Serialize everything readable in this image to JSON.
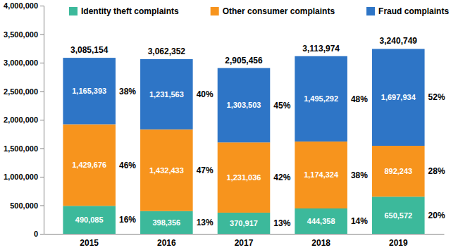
{
  "chart_data": {
    "type": "bar",
    "stacked": true,
    "data_labels": true,
    "legend": "top",
    "grid": false,
    "categories": [
      "2015",
      "2016",
      "2017",
      "2018",
      "2019"
    ],
    "series": [
      {
        "name": "Identity theft complaints",
        "color": "#3cb99b",
        "values": [
          490085,
          398356,
          370917,
          444358,
          650572
        ],
        "value_labels": [
          "490,085",
          "398,356",
          "370,917",
          "444,358",
          "650,572"
        ],
        "shares": [
          16,
          13,
          13,
          14,
          20
        ],
        "share_labels": [
          "16%",
          "13%",
          "13%",
          "14%",
          "20%"
        ]
      },
      {
        "name": "Other consumer complaints",
        "color": "#f7941d",
        "values": [
          1429676,
          1432433,
          1231036,
          1174324,
          892243
        ],
        "value_labels": [
          "1,429,676",
          "1,432,433",
          "1,231,036",
          "1,174,324",
          "892,243"
        ],
        "shares": [
          46,
          47,
          42,
          38,
          28
        ],
        "share_labels": [
          "46%",
          "47%",
          "42%",
          "38%",
          "28%"
        ]
      },
      {
        "name": "Fraud complaints",
        "color": "#2e75c6",
        "values": [
          1165393,
          1231563,
          1303503,
          1495292,
          1697934
        ],
        "value_labels": [
          "1,165,393",
          "1,231,563",
          "1,303,503",
          "1,495,292",
          "1,697,934"
        ],
        "shares": [
          38,
          40,
          45,
          48,
          52
        ],
        "share_labels": [
          "38%",
          "40%",
          "45%",
          "48%",
          "52%"
        ]
      }
    ],
    "totals": [
      3085154,
      3062352,
      2905456,
      3113974,
      3240749
    ],
    "total_labels": [
      "3,085,154",
      "3,062,352",
      "2,905,456",
      "3,113,974",
      "3,240,749"
    ],
    "ylim": [
      0,
      4000000
    ],
    "yticks": [
      0,
      {
        "value": 500000,
        "label": "500,000"
      },
      {
        "value": 1000000,
        "label": "1,000,000"
      },
      {
        "value": 1500000,
        "label": "1,500,000"
      },
      {
        "value": 2000000,
        "label": "2,000,000"
      },
      {
        "value": 2500000,
        "label": "2,500,000"
      },
      {
        "value": 3000000,
        "label": "3,000,000"
      },
      {
        "value": 3500000,
        "label": "3,500,000"
      },
      {
        "value": 4000000,
        "label": "4,000,000"
      }
    ]
  }
}
